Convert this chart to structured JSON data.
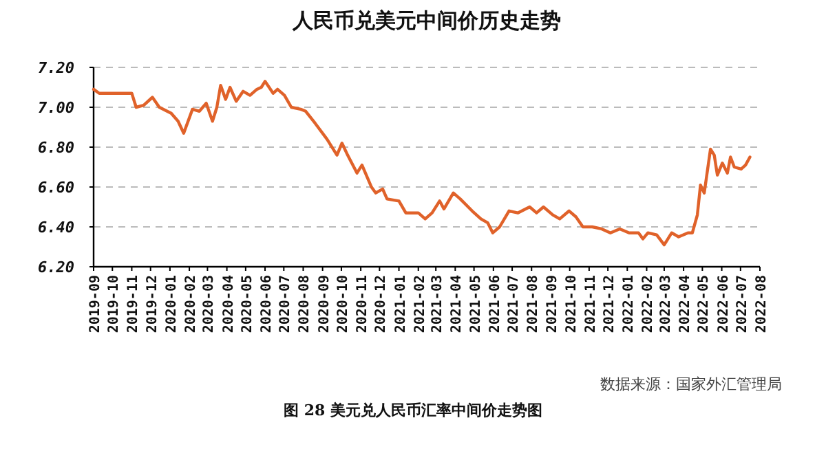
{
  "chart_data": {
    "type": "line",
    "title": "人民币兑美元中间价历史走势",
    "annotations": [
      "数据来源：国家外汇管理局",
      "图 28   美元兑人民币汇率中间价走势图"
    ],
    "grid": "y",
    "marker": "none",
    "line_style": "solid",
    "ylim": [
      6.2,
      7.2
    ],
    "yticks": [
      {
        "value": 6.2,
        "label": "6.20"
      },
      {
        "value": 6.4,
        "label": "6.40"
      },
      {
        "value": 6.6,
        "label": "6.60"
      },
      {
        "value": 6.8,
        "label": "6.80"
      },
      {
        "value": 7.0,
        "label": "7.00"
      },
      {
        "value": 7.2,
        "label": "7.20"
      }
    ],
    "xlim": [
      "2019-09",
      "2022-08"
    ],
    "xticks": [
      "2019-09",
      "2019-10",
      "2019-11",
      "2019-12",
      "2020-01",
      "2020-02",
      "2020-03",
      "2020-04",
      "2020-05",
      "2020-06",
      "2020-07",
      "2020-08",
      "2020-09",
      "2020-10",
      "2020-11",
      "2020-12",
      "2021-01",
      "2021-02",
      "2021-03",
      "2021-04",
      "2021-05",
      "2021-06",
      "2021-07",
      "2021-08",
      "2021-09",
      "2021-10",
      "2021-11",
      "2021-12",
      "2022-01",
      "2022-02",
      "2022-03",
      "2022-04",
      "2022-05",
      "2022-06",
      "2022-07",
      "2022-08"
    ],
    "series": [
      {
        "color": "#e0622a",
        "x": [
          "2019-09-01",
          "2019-09-10",
          "2019-10-15",
          "2019-11-01",
          "2019-11-08",
          "2019-11-20",
          "2019-12-04",
          "2019-12-15",
          "2020-01-03",
          "2020-01-14",
          "2020-01-23",
          "2020-02-06",
          "2020-02-17",
          "2020-02-28",
          "2020-03-09",
          "2020-03-16",
          "2020-03-22",
          "2020-03-30",
          "2020-04-06",
          "2020-04-16",
          "2020-04-27",
          "2020-05-08",
          "2020-05-19",
          "2020-05-26",
          "2020-06-01",
          "2020-06-14",
          "2020-06-21",
          "2020-07-02",
          "2020-07-13",
          "2020-07-28",
          "2020-08-05",
          "2020-08-20",
          "2020-09-08",
          "2020-09-24",
          "2020-10-02",
          "2020-10-11",
          "2020-10-26",
          "2020-11-03",
          "2020-11-18",
          "2020-11-25",
          "2020-12-06",
          "2020-12-13",
          "2021-01-01",
          "2021-01-12",
          "2021-02-01",
          "2021-02-12",
          "2021-02-23",
          "2021-03-07",
          "2021-03-14",
          "2021-03-29",
          "2021-04-09",
          "2021-04-28",
          "2021-05-12",
          "2021-05-23",
          "2021-05-31",
          "2021-06-11",
          "2021-06-26",
          "2021-07-10",
          "2021-07-29",
          "2021-08-09",
          "2021-08-20",
          "2021-09-04",
          "2021-09-15",
          "2021-09-30",
          "2021-10-11",
          "2021-10-22",
          "2021-11-06",
          "2021-11-21",
          "2021-12-05",
          "2021-12-20",
          "2022-01-04",
          "2022-01-19",
          "2022-01-26",
          "2022-02-03",
          "2022-02-17",
          "2022-03-01",
          "2022-03-13",
          "2022-03-24",
          "2022-04-08",
          "2022-04-15",
          "2022-04-23",
          "2022-04-28",
          "2022-05-04",
          "2022-05-14",
          "2022-05-20",
          "2022-05-25",
          "2022-06-02",
          "2022-06-10",
          "2022-06-15",
          "2022-06-21",
          "2022-07-02",
          "2022-07-09",
          "2022-07-16"
        ],
        "values": [
          7.09,
          7.07,
          7.07,
          7.07,
          7.0,
          7.01,
          7.05,
          7.0,
          6.97,
          6.93,
          6.87,
          6.99,
          6.98,
          7.02,
          6.93,
          7.0,
          7.11,
          7.04,
          7.1,
          7.03,
          7.08,
          7.06,
          7.09,
          7.1,
          7.13,
          7.07,
          7.09,
          7.06,
          7.0,
          6.99,
          6.98,
          6.92,
          6.84,
          6.76,
          6.82,
          6.76,
          6.67,
          6.71,
          6.6,
          6.57,
          6.59,
          6.54,
          6.53,
          6.47,
          6.47,
          6.44,
          6.47,
          6.53,
          6.49,
          6.57,
          6.54,
          6.48,
          6.44,
          6.42,
          6.37,
          6.4,
          6.48,
          6.47,
          6.5,
          6.47,
          6.5,
          6.46,
          6.44,
          6.48,
          6.45,
          6.4,
          6.4,
          6.39,
          6.37,
          6.39,
          6.37,
          6.37,
          6.34,
          6.37,
          6.36,
          6.31,
          6.37,
          6.35,
          6.37,
          6.37,
          6.46,
          6.61,
          6.57,
          6.79,
          6.76,
          6.66,
          6.72,
          6.67,
          6.75,
          6.7,
          6.69,
          6.71,
          6.75
        ]
      }
    ]
  }
}
